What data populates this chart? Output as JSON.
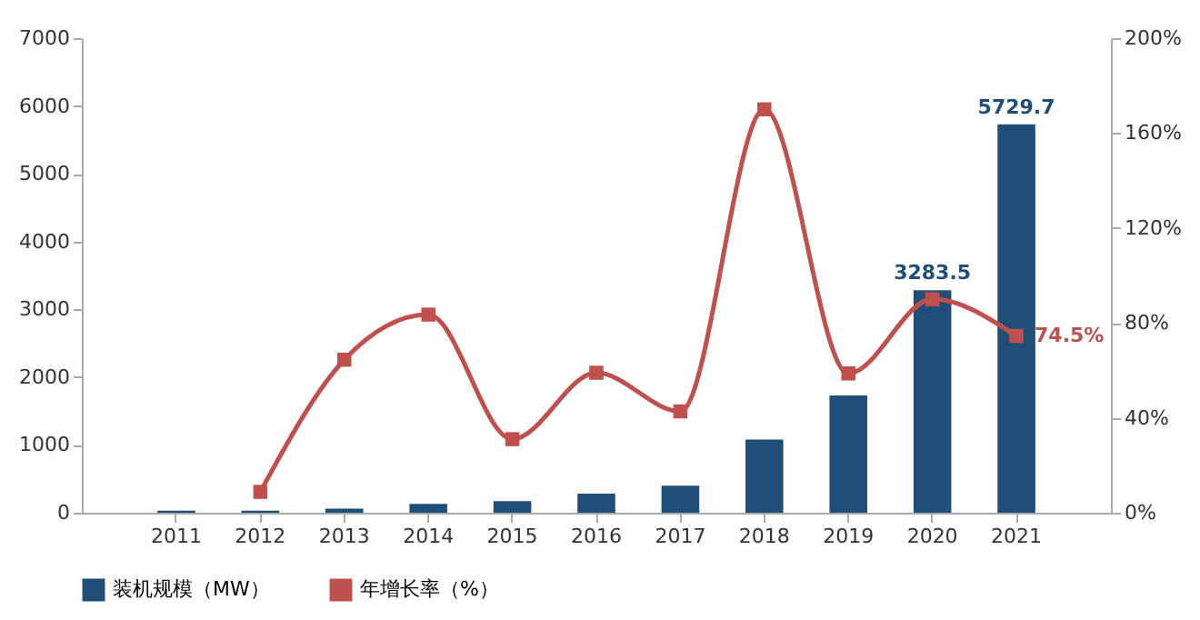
{
  "chart_data": {
    "type": "bar",
    "categories": [
      "2011",
      "2012",
      "2013",
      "2014",
      "2015",
      "2016",
      "2017",
      "2018",
      "2019",
      "2020",
      "2021"
    ],
    "series": [
      {
        "name": "装机规模（MW）",
        "color": "#1f4e79",
        "values": [
          30,
          30,
          60,
          130,
          170,
          280,
          400,
          1080,
          1730,
          3283.5,
          5729.7
        ],
        "value_labels": [
          null,
          null,
          null,
          null,
          null,
          null,
          null,
          null,
          null,
          "3283.5",
          "5729.7"
        ]
      },
      {
        "name": "年增长率（%）",
        "type": "line",
        "axis": "y2",
        "color": "#c0504d",
        "marker": "square",
        "values": [
          null,
          8.8,
          64.5,
          83.5,
          31,
          59,
          42.7,
          170,
          58.7,
          90,
          74.5
        ],
        "value_labels": [
          null,
          null,
          null,
          null,
          null,
          null,
          null,
          null,
          null,
          null,
          "74.5%"
        ]
      }
    ],
    "ylim": [
      0,
      7000
    ],
    "yticks": [
      0,
      1000,
      2000,
      3000,
      4000,
      5000,
      6000,
      7000
    ],
    "y2lim": [
      0,
      200
    ],
    "y2ticks": [
      {
        "value": 0,
        "label": "0%"
      },
      {
        "value": 40,
        "label": "40%"
      },
      {
        "value": 80,
        "label": "80%"
      },
      {
        "value": 120,
        "label": "120%"
      },
      {
        "value": 160,
        "label": "160%"
      },
      {
        "value": 200,
        "label": "200%"
      }
    ],
    "grid": false,
    "legend": "bottom"
  }
}
